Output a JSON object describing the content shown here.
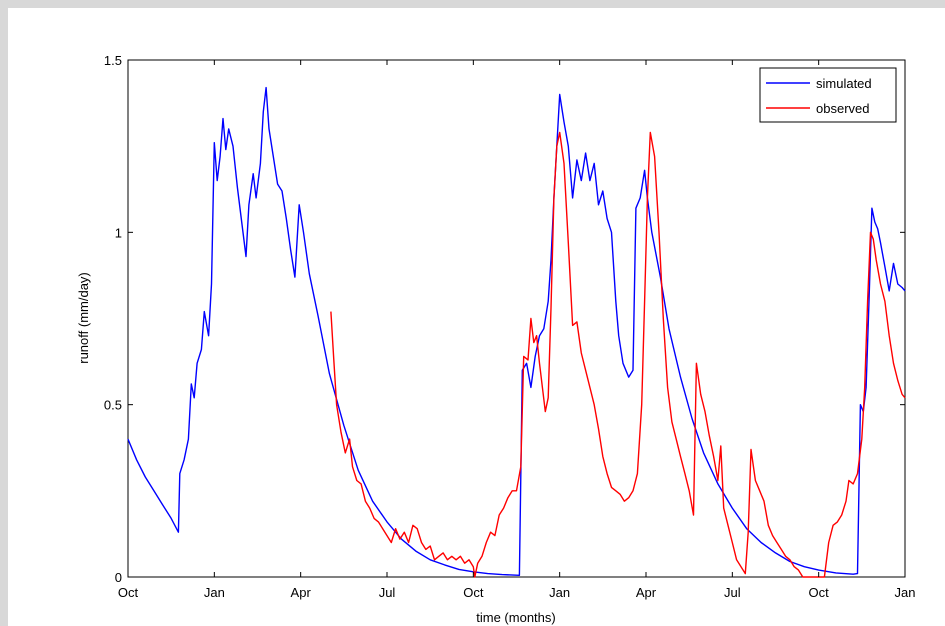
{
  "chart_data": {
    "type": "line",
    "xlabel": "time (months)",
    "ylabel": "runoff (mm/day)",
    "x_range_months": [
      0,
      27
    ],
    "ylim": [
      0,
      1.5
    ],
    "x_tick_positions_months": [
      0,
      3,
      6,
      9,
      12,
      15,
      18,
      21,
      24,
      27
    ],
    "x_tick_labels": [
      "Oct",
      "Jan",
      "Apr",
      "Jul",
      "Oct",
      "Jan",
      "Apr",
      "Jul",
      "Oct",
      "Jan"
    ],
    "y_ticks": [
      0,
      0.5,
      1,
      1.5
    ],
    "y_tick_labels": [
      "0",
      "0.5",
      "1",
      "1.5"
    ],
    "grid": false,
    "legend_position": "top-right",
    "series": [
      {
        "name": "simulated",
        "color": "#0000ff",
        "points": [
          [
            0.0,
            0.4
          ],
          [
            0.3,
            0.34
          ],
          [
            0.6,
            0.29
          ],
          [
            0.9,
            0.25
          ],
          [
            1.2,
            0.21
          ],
          [
            1.5,
            0.17
          ],
          [
            1.75,
            0.13
          ],
          [
            1.8,
            0.3
          ],
          [
            1.95,
            0.34
          ],
          [
            2.1,
            0.4
          ],
          [
            2.2,
            0.56
          ],
          [
            2.3,
            0.52
          ],
          [
            2.4,
            0.62
          ],
          [
            2.55,
            0.66
          ],
          [
            2.65,
            0.77
          ],
          [
            2.8,
            0.7
          ],
          [
            2.9,
            0.85
          ],
          [
            3.0,
            1.26
          ],
          [
            3.1,
            1.15
          ],
          [
            3.2,
            1.22
          ],
          [
            3.3,
            1.33
          ],
          [
            3.4,
            1.24
          ],
          [
            3.5,
            1.3
          ],
          [
            3.65,
            1.25
          ],
          [
            3.8,
            1.13
          ],
          [
            3.95,
            1.03
          ],
          [
            4.1,
            0.93
          ],
          [
            4.2,
            1.08
          ],
          [
            4.35,
            1.17
          ],
          [
            4.45,
            1.1
          ],
          [
            4.6,
            1.2
          ],
          [
            4.7,
            1.35
          ],
          [
            4.8,
            1.42
          ],
          [
            4.9,
            1.3
          ],
          [
            5.05,
            1.22
          ],
          [
            5.2,
            1.14
          ],
          [
            5.35,
            1.12
          ],
          [
            5.5,
            1.04
          ],
          [
            5.65,
            0.95
          ],
          [
            5.8,
            0.87
          ],
          [
            5.95,
            1.08
          ],
          [
            6.1,
            1.0
          ],
          [
            6.3,
            0.88
          ],
          [
            6.6,
            0.76
          ],
          [
            7.0,
            0.59
          ],
          [
            7.5,
            0.44
          ],
          [
            8.0,
            0.31
          ],
          [
            8.5,
            0.22
          ],
          [
            9.0,
            0.16
          ],
          [
            9.5,
            0.11
          ],
          [
            10.0,
            0.075
          ],
          [
            10.5,
            0.05
          ],
          [
            11.0,
            0.035
          ],
          [
            11.5,
            0.022
          ],
          [
            12.0,
            0.015
          ],
          [
            12.5,
            0.01
          ],
          [
            13.0,
            0.007
          ],
          [
            13.6,
            0.005
          ],
          [
            13.7,
            0.6
          ],
          [
            13.85,
            0.62
          ],
          [
            14.0,
            0.55
          ],
          [
            14.15,
            0.64
          ],
          [
            14.3,
            0.7
          ],
          [
            14.45,
            0.72
          ],
          [
            14.6,
            0.8
          ],
          [
            14.7,
            0.92
          ],
          [
            14.8,
            1.1
          ],
          [
            14.9,
            1.25
          ],
          [
            15.0,
            1.4
          ],
          [
            15.15,
            1.32
          ],
          [
            15.3,
            1.25
          ],
          [
            15.45,
            1.1
          ],
          [
            15.6,
            1.21
          ],
          [
            15.75,
            1.15
          ],
          [
            15.9,
            1.23
          ],
          [
            16.05,
            1.15
          ],
          [
            16.2,
            1.2
          ],
          [
            16.35,
            1.08
          ],
          [
            16.5,
            1.12
          ],
          [
            16.65,
            1.04
          ],
          [
            16.8,
            1.0
          ],
          [
            16.95,
            0.8
          ],
          [
            17.05,
            0.7
          ],
          [
            17.2,
            0.62
          ],
          [
            17.4,
            0.58
          ],
          [
            17.55,
            0.6
          ],
          [
            17.65,
            1.07
          ],
          [
            17.8,
            1.1
          ],
          [
            17.95,
            1.18
          ],
          [
            18.05,
            1.1
          ],
          [
            18.2,
            1.0
          ],
          [
            18.5,
            0.87
          ],
          [
            18.8,
            0.72
          ],
          [
            19.2,
            0.58
          ],
          [
            19.6,
            0.46
          ],
          [
            20.0,
            0.36
          ],
          [
            20.5,
            0.27
          ],
          [
            21.0,
            0.2
          ],
          [
            21.5,
            0.14
          ],
          [
            22.0,
            0.1
          ],
          [
            22.5,
            0.07
          ],
          [
            23.0,
            0.045
          ],
          [
            23.5,
            0.03
          ],
          [
            24.0,
            0.02
          ],
          [
            24.6,
            0.012
          ],
          [
            25.2,
            0.008
          ],
          [
            25.35,
            0.01
          ],
          [
            25.45,
            0.5
          ],
          [
            25.55,
            0.48
          ],
          [
            25.65,
            0.55
          ],
          [
            25.75,
            0.8
          ],
          [
            25.85,
            1.07
          ],
          [
            25.95,
            1.03
          ],
          [
            26.05,
            1.01
          ],
          [
            26.15,
            0.97
          ],
          [
            26.3,
            0.9
          ],
          [
            26.45,
            0.83
          ],
          [
            26.6,
            0.91
          ],
          [
            26.75,
            0.85
          ],
          [
            26.9,
            0.84
          ],
          [
            27.0,
            0.83
          ]
        ]
      },
      {
        "name": "observed",
        "color": "#ff0000",
        "points": [
          [
            7.05,
            0.77
          ],
          [
            7.15,
            0.63
          ],
          [
            7.25,
            0.5
          ],
          [
            7.4,
            0.42
          ],
          [
            7.55,
            0.36
          ],
          [
            7.7,
            0.4
          ],
          [
            7.8,
            0.32
          ],
          [
            7.95,
            0.28
          ],
          [
            8.1,
            0.27
          ],
          [
            8.25,
            0.22
          ],
          [
            8.4,
            0.2
          ],
          [
            8.55,
            0.17
          ],
          [
            8.7,
            0.16
          ],
          [
            8.85,
            0.14
          ],
          [
            9.0,
            0.12
          ],
          [
            9.15,
            0.1
          ],
          [
            9.3,
            0.14
          ],
          [
            9.45,
            0.11
          ],
          [
            9.6,
            0.13
          ],
          [
            9.75,
            0.1
          ],
          [
            9.9,
            0.15
          ],
          [
            10.05,
            0.14
          ],
          [
            10.2,
            0.1
          ],
          [
            10.35,
            0.08
          ],
          [
            10.5,
            0.09
          ],
          [
            10.65,
            0.05
          ],
          [
            10.8,
            0.06
          ],
          [
            10.95,
            0.07
          ],
          [
            11.1,
            0.05
          ],
          [
            11.25,
            0.06
          ],
          [
            11.4,
            0.05
          ],
          [
            11.55,
            0.06
          ],
          [
            11.7,
            0.04
          ],
          [
            11.85,
            0.05
          ],
          [
            12.0,
            0.03
          ],
          [
            12.05,
            0.0
          ],
          [
            12.15,
            0.04
          ],
          [
            12.3,
            0.06
          ],
          [
            12.45,
            0.1
          ],
          [
            12.6,
            0.13
          ],
          [
            12.75,
            0.12
          ],
          [
            12.9,
            0.18
          ],
          [
            13.05,
            0.2
          ],
          [
            13.2,
            0.23
          ],
          [
            13.35,
            0.25
          ],
          [
            13.5,
            0.25
          ],
          [
            13.65,
            0.32
          ],
          [
            13.75,
            0.64
          ],
          [
            13.9,
            0.63
          ],
          [
            14.0,
            0.75
          ],
          [
            14.1,
            0.68
          ],
          [
            14.2,
            0.7
          ],
          [
            14.3,
            0.62
          ],
          [
            14.4,
            0.55
          ],
          [
            14.5,
            0.48
          ],
          [
            14.6,
            0.52
          ],
          [
            14.7,
            0.78
          ],
          [
            14.8,
            1.1
          ],
          [
            14.9,
            1.25
          ],
          [
            15.0,
            1.29
          ],
          [
            15.15,
            1.2
          ],
          [
            15.3,
            0.97
          ],
          [
            15.45,
            0.73
          ],
          [
            15.6,
            0.74
          ],
          [
            15.75,
            0.65
          ],
          [
            15.9,
            0.6
          ],
          [
            16.05,
            0.55
          ],
          [
            16.2,
            0.5
          ],
          [
            16.35,
            0.43
          ],
          [
            16.5,
            0.35
          ],
          [
            16.65,
            0.3
          ],
          [
            16.8,
            0.26
          ],
          [
            16.95,
            0.25
          ],
          [
            17.1,
            0.24
          ],
          [
            17.25,
            0.22
          ],
          [
            17.4,
            0.23
          ],
          [
            17.55,
            0.25
          ],
          [
            17.7,
            0.3
          ],
          [
            17.85,
            0.5
          ],
          [
            17.95,
            0.8
          ],
          [
            18.05,
            1.1
          ],
          [
            18.15,
            1.29
          ],
          [
            18.3,
            1.22
          ],
          [
            18.45,
            1.0
          ],
          [
            18.6,
            0.75
          ],
          [
            18.75,
            0.55
          ],
          [
            18.9,
            0.45
          ],
          [
            19.05,
            0.4
          ],
          [
            19.2,
            0.35
          ],
          [
            19.35,
            0.3
          ],
          [
            19.5,
            0.25
          ],
          [
            19.65,
            0.18
          ],
          [
            19.75,
            0.62
          ],
          [
            19.9,
            0.53
          ],
          [
            20.05,
            0.48
          ],
          [
            20.2,
            0.41
          ],
          [
            20.35,
            0.35
          ],
          [
            20.5,
            0.28
          ],
          [
            20.6,
            0.38
          ],
          [
            20.7,
            0.2
          ],
          [
            20.85,
            0.15
          ],
          [
            21.0,
            0.1
          ],
          [
            21.15,
            0.05
          ],
          [
            21.3,
            0.03
          ],
          [
            21.45,
            0.01
          ],
          [
            21.55,
            0.13
          ],
          [
            21.65,
            0.37
          ],
          [
            21.8,
            0.28
          ],
          [
            21.95,
            0.25
          ],
          [
            22.1,
            0.22
          ],
          [
            22.25,
            0.15
          ],
          [
            22.4,
            0.12
          ],
          [
            22.55,
            0.1
          ],
          [
            22.7,
            0.08
          ],
          [
            22.85,
            0.06
          ],
          [
            23.0,
            0.05
          ],
          [
            23.15,
            0.03
          ],
          [
            23.3,
            0.02
          ],
          [
            23.45,
            0.0
          ],
          [
            23.6,
            0.0
          ],
          [
            23.75,
            0.0
          ],
          [
            23.9,
            0.0
          ],
          [
            24.05,
            0.0
          ],
          [
            24.2,
            0.0
          ],
          [
            24.35,
            0.1
          ],
          [
            24.5,
            0.15
          ],
          [
            24.65,
            0.16
          ],
          [
            24.8,
            0.18
          ],
          [
            24.95,
            0.22
          ],
          [
            25.05,
            0.28
          ],
          [
            25.2,
            0.27
          ],
          [
            25.35,
            0.3
          ],
          [
            25.5,
            0.4
          ],
          [
            25.6,
            0.55
          ],
          [
            25.7,
            0.8
          ],
          [
            25.8,
            1.0
          ],
          [
            25.9,
            0.98
          ],
          [
            26.0,
            0.92
          ],
          [
            26.15,
            0.85
          ],
          [
            26.3,
            0.8
          ],
          [
            26.45,
            0.7
          ],
          [
            26.6,
            0.62
          ],
          [
            26.75,
            0.57
          ],
          [
            26.9,
            0.53
          ],
          [
            27.0,
            0.52
          ]
        ]
      }
    ]
  }
}
